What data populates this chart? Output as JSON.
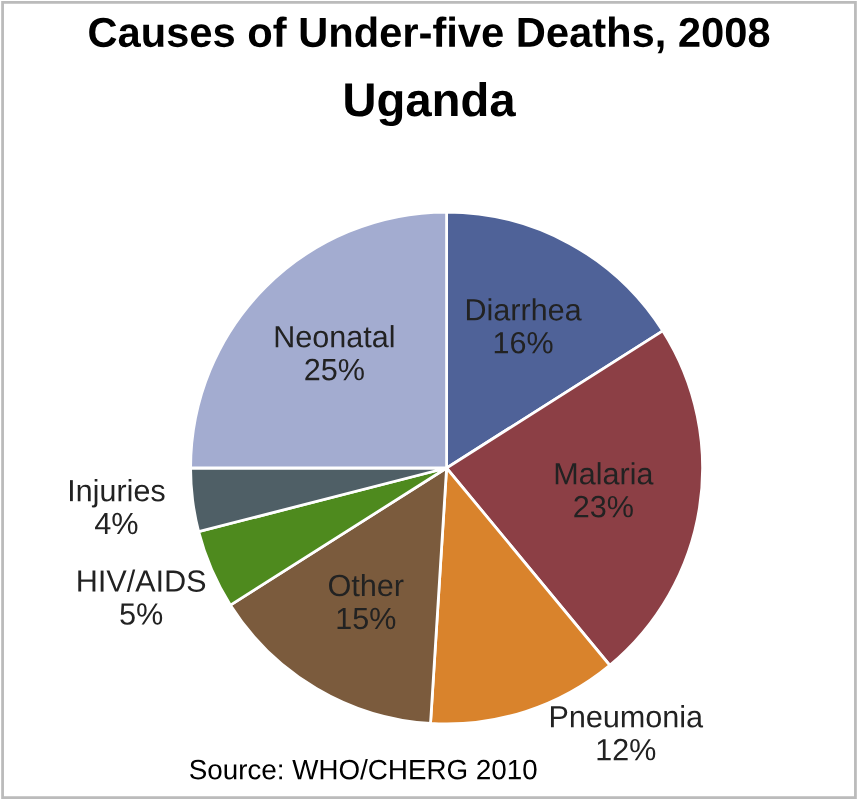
{
  "chart_data": {
    "type": "pie",
    "title": "Causes of Under-five Deaths, 2008",
    "subtitle": "Uganda",
    "categories": [
      "Diarrhea",
      "Malaria",
      "Pneumonia",
      "Other",
      "HIV/AIDS",
      "Injuries",
      "Neonatal"
    ],
    "values": [
      16,
      23,
      12,
      15,
      5,
      4,
      25
    ],
    "colors": [
      "#4f6298",
      "#8c3f45",
      "#d9832c",
      "#7b5b3d",
      "#4e8a1e",
      "#4f5f66",
      "#a3acd0"
    ],
    "value_labels": [
      "16%",
      "23%",
      "12%",
      "15%",
      "5%",
      "4%",
      "25%"
    ],
    "annotations": [
      "Source: WHO/CHERG 2010"
    ]
  }
}
